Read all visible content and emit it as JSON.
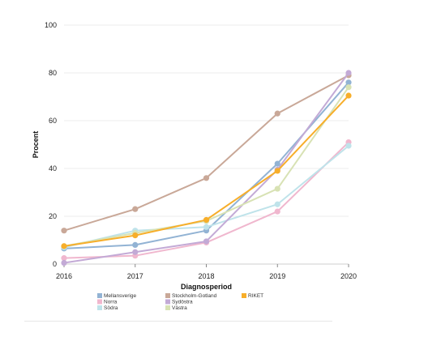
{
  "chart_data": {
    "type": "line",
    "title": "",
    "xlabel": "Diagnosperiod",
    "ylabel": "Procent",
    "x": [
      2016,
      2017,
      2018,
      2019,
      2020
    ],
    "x_tick_labels": [
      "2016",
      "2017",
      "2018",
      "2019",
      "2020"
    ],
    "ylim": [
      0,
      100
    ],
    "y_tick_labels": [
      "0",
      "20",
      "40",
      "60",
      "80",
      "100"
    ],
    "grid": "horizontal",
    "legend_position": "bottom",
    "series": [
      {
        "name": "Mellansverige",
        "color": "#92b3d4",
        "values": [
          6.5,
          8,
          14,
          42,
          76
        ]
      },
      {
        "name": "Norra",
        "color": "#f0b7ce",
        "values": [
          2.5,
          3.5,
          9,
          22,
          51
        ]
      },
      {
        "name": "Södra",
        "color": "#bfe3ea",
        "values": [
          7,
          14,
          15.5,
          25,
          49.5
        ]
      },
      {
        "name": "Stockholm-Gotland",
        "color": "#c9a898",
        "values": [
          14,
          23,
          36,
          63,
          79
        ]
      },
      {
        "name": "Sydöstra",
        "color": "#c3aad6",
        "values": [
          0.5,
          5,
          9.5,
          39.5,
          80
        ]
      },
      {
        "name": "Västra",
        "color": "#d8e2b4",
        "values": [
          7.5,
          13,
          18,
          31.5,
          74
        ]
      },
      {
        "name": "RIKET",
        "color": "#f7ae2a",
        "values": [
          7.5,
          12,
          18.5,
          39,
          70.5
        ]
      }
    ],
    "legend_order": [
      [
        "Mellansverige",
        "Norra",
        "Södra"
      ],
      [
        "Stockholm-Gotland",
        "Sydöstra",
        "Västra"
      ],
      [
        "RIKET"
      ]
    ]
  }
}
